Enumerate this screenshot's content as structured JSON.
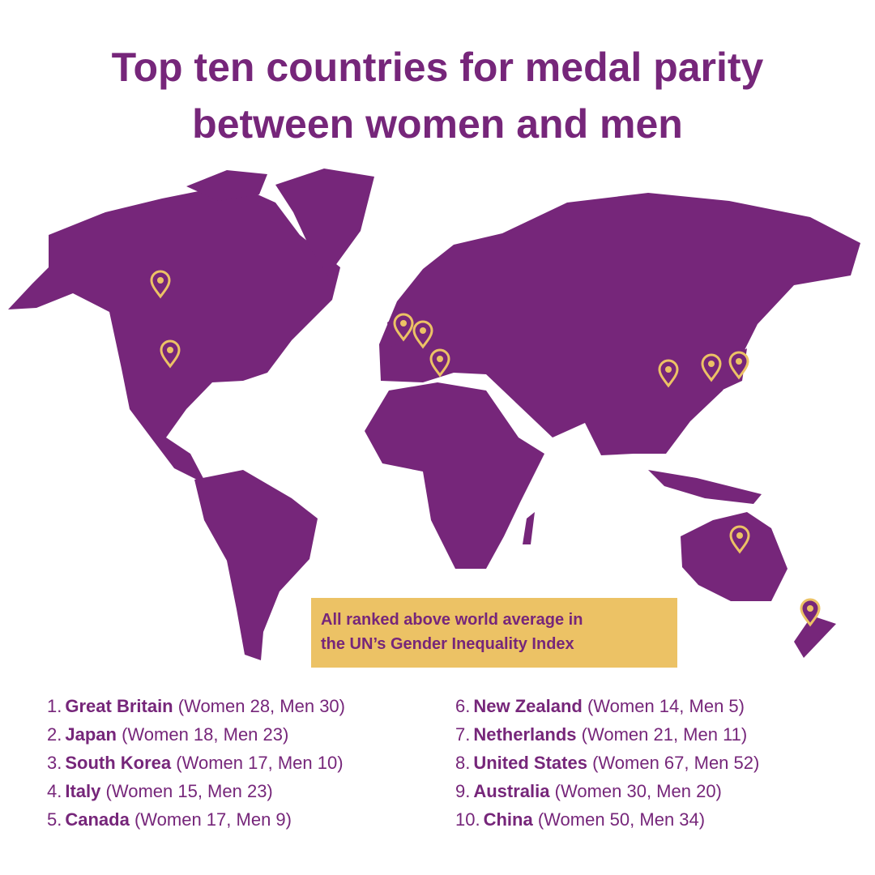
{
  "title": {
    "lines": [
      "Top ten countries for medal parity",
      "between women and men"
    ]
  },
  "note": {
    "lines": [
      "All ranked above world average in",
      "the UN’s Gender Inequality Index"
    ]
  },
  "list": [
    {
      "rank": "1.",
      "country": "Great Britain",
      "detail": "(Women 28, Men 30)"
    },
    {
      "rank": "2.",
      "country": "Japan",
      "detail": "(Women 18, Men 23)"
    },
    {
      "rank": "3.",
      "country": "South Korea",
      "detail": "(Women 17, Men 10)"
    },
    {
      "rank": "4.",
      "country": "Italy",
      "detail": "(Women 15, Men 23)"
    },
    {
      "rank": "5.",
      "country": "Canada",
      "detail": "(Women 17, Men 9)"
    },
    {
      "rank": "6.",
      "country": "New Zealand",
      "detail": "(Women 14, Men 5)"
    },
    {
      "rank": "7.",
      "country": "Netherlands",
      "detail": "(Women 21, Men 11)"
    },
    {
      "rank": "8.",
      "country": "United States",
      "detail": "(Women 67, Men 52)"
    },
    {
      "rank": "9.",
      "country": "Australia",
      "detail": "(Women 30, Men 20)"
    },
    {
      "rank": "10.",
      "country": "China",
      "detail": "(Women 50, Men 34)"
    }
  ]
}
